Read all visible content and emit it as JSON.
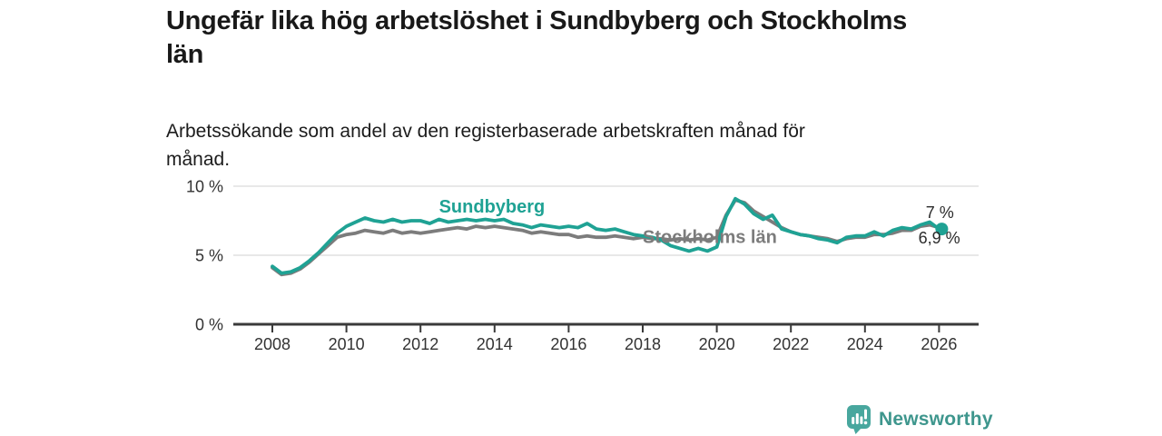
{
  "header": {
    "title_lines": [
      "Ungefär lika hög arbetslöshet i Sundbyberg och Stockholms",
      "län"
    ],
    "subtitle_lines": [
      "Arbetssökande som andel av den registerbaserade arbetskraften månad för",
      "månad."
    ]
  },
  "footer": {
    "logo_text": "Newsworthy",
    "logo_icon": "bar-chart-speech-bubble",
    "logo_color": "#3e968d"
  },
  "chart_data": {
    "type": "line",
    "title": "Ungefär lika hög arbetslöshet i Sundbyberg och Stockholms län",
    "subtitle": "Arbetssökande som andel av den registerbaserade arbetskraften månad för månad.",
    "unit": "%",
    "x_start": 2008,
    "x_step": 0.25,
    "x_ticks": [
      2008,
      2010,
      2012,
      2014,
      2016,
      2018,
      2020,
      2022,
      2024,
      2026
    ],
    "ylim": [
      0,
      10.6
    ],
    "y_ticks": [
      {
        "v": 0,
        "label": "0 %"
      },
      {
        "v": 5,
        "label": "5 %"
      },
      {
        "v": 10,
        "label": "10 %"
      }
    ],
    "grid": "horizontal-only",
    "legend": "inline-line-labels",
    "colors": {
      "axis": "#3a3a3a",
      "axis_text": "#333333",
      "grid": "#d9d9d9",
      "end_label": "#2b2b2b"
    },
    "series": [
      {
        "name": "Sundbyberg",
        "color": "#1fa294",
        "end_label": "6,9 %",
        "end_dot": true,
        "name_label_pos": {
          "x": 2012.5,
          "y": 8.1,
          "anchor": "start"
        },
        "end_label_pos": {
          "x": 2026.57,
          "y": 5.85,
          "anchor": "end"
        },
        "values": [
          4.2,
          3.7,
          3.8,
          4.1,
          4.6,
          5.2,
          5.9,
          6.6,
          7.1,
          7.4,
          7.7,
          7.5,
          7.4,
          7.6,
          7.4,
          7.5,
          7.5,
          7.3,
          7.6,
          7.4,
          7.5,
          7.6,
          7.5,
          7.6,
          7.5,
          7.6,
          7.3,
          7.2,
          7.0,
          7.2,
          7.1,
          7.0,
          7.1,
          7.0,
          7.3,
          6.9,
          6.8,
          6.9,
          6.7,
          6.5,
          6.4,
          6.3,
          6.1,
          5.7,
          5.5,
          5.3,
          5.5,
          5.3,
          5.6,
          7.8,
          9.1,
          8.7,
          8.0,
          7.6,
          7.9,
          6.9,
          6.7,
          6.5,
          6.4,
          6.2,
          6.1,
          5.9,
          6.3,
          6.4,
          6.4,
          6.7,
          6.4,
          6.8,
          7.0,
          6.9,
          7.2,
          7.4,
          6.9
        ]
      },
      {
        "name": "Stockholms län",
        "color": "#7c7c7c",
        "end_label": "7 %",
        "end_dot": false,
        "name_label_pos": {
          "x": 2018.0,
          "y": 5.9,
          "anchor": "start"
        },
        "end_label_pos": {
          "x": 2026.4,
          "y": 7.7,
          "anchor": "end"
        },
        "values": [
          4.1,
          3.6,
          3.7,
          4.0,
          4.5,
          5.1,
          5.7,
          6.3,
          6.5,
          6.6,
          6.8,
          6.7,
          6.6,
          6.8,
          6.6,
          6.7,
          6.6,
          6.7,
          6.8,
          6.9,
          7.0,
          6.9,
          7.1,
          7.0,
          7.1,
          7.0,
          6.9,
          6.8,
          6.6,
          6.7,
          6.6,
          6.5,
          6.5,
          6.3,
          6.4,
          6.3,
          6.3,
          6.4,
          6.3,
          6.2,
          6.3,
          6.2,
          6.2,
          6.1,
          6.2,
          6.1,
          6.2,
          6.1,
          6.3,
          7.9,
          9.0,
          8.8,
          8.2,
          7.8,
          7.4,
          7.0,
          6.7,
          6.5,
          6.4,
          6.3,
          6.2,
          6.0,
          6.2,
          6.3,
          6.3,
          6.5,
          6.5,
          6.6,
          6.8,
          6.8,
          7.1,
          7.2,
          7.0
        ]
      }
    ]
  }
}
